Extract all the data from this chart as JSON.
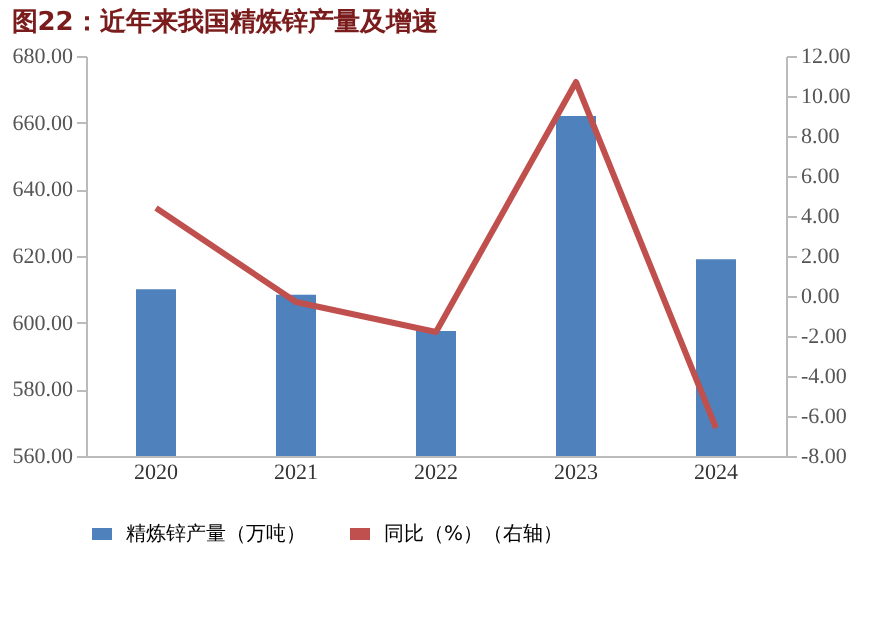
{
  "chart_data": {
    "type": "bar",
    "title": "图22：近年来我国精炼锌产量及增速",
    "categories": [
      "2020",
      "2021",
      "2022",
      "2023",
      "2024"
    ],
    "series": [
      {
        "name": "精炼锌产量（万吨）",
        "color": "#4f81bd",
        "values": [
          610,
          608.4,
          597.5,
          662,
          619
        ]
      },
      {
        "name": "同比（%）（右轴）",
        "type": "line",
        "axis": "y2",
        "color": "#c0504d",
        "values": [
          4.4,
          -0.3,
          -1.8,
          10.7,
          -6.6
        ]
      }
    ],
    "ylim": [
      560,
      680
    ],
    "yticks": [
      {
        "value": 560,
        "label": "560.00"
      },
      {
        "value": 580,
        "label": "580.00"
      },
      {
        "value": 600,
        "label": "600.00"
      },
      {
        "value": 620,
        "label": "620.00"
      },
      {
        "value": 640,
        "label": "640.00"
      },
      {
        "value": 660,
        "label": "660.00"
      },
      {
        "value": 680,
        "label": "680.00"
      }
    ],
    "y2lim": [
      -8,
      12
    ],
    "y2ticks": [
      {
        "value": -8,
        "label": "-8.00"
      },
      {
        "value": -6,
        "label": "-6.00"
      },
      {
        "value": -4,
        "label": "-4.00"
      },
      {
        "value": -2,
        "label": "-2.00"
      },
      {
        "value": 0,
        "label": "0.00"
      },
      {
        "value": 2,
        "label": "2.00"
      },
      {
        "value": 4,
        "label": "4.00"
      },
      {
        "value": 6,
        "label": "6.00"
      },
      {
        "value": 8,
        "label": "8.00"
      },
      {
        "value": 10,
        "label": "10.00"
      },
      {
        "value": 12,
        "label": "12.00"
      }
    ],
    "grid": false,
    "legend": "bottom",
    "line_style": "solid",
    "marker": "none"
  }
}
